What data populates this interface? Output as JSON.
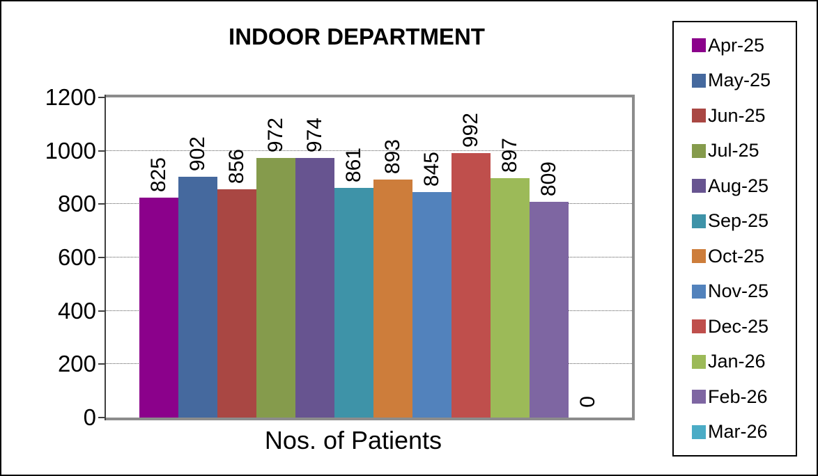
{
  "chart_data": {
    "type": "bar",
    "title": "INDOOR DEPARTMENT",
    "xlabel": "Nos. of Patients",
    "ylabel": "",
    "ylim": [
      0,
      1200
    ],
    "yticks": [
      0,
      200,
      400,
      600,
      800,
      1000,
      1200
    ],
    "grid": true,
    "legend_position": "right",
    "data_label_rotation": -90,
    "series": [
      {
        "name": "Apr-25",
        "value": 825,
        "color": "#8B018B"
      },
      {
        "name": "May-25",
        "value": 902,
        "color": "#45699E"
      },
      {
        "name": "Jun-25",
        "value": 856,
        "color": "#A94743"
      },
      {
        "name": "Jul-25",
        "value": 972,
        "color": "#859B4C"
      },
      {
        "name": "Aug-25",
        "value": 974,
        "color": "#675490"
      },
      {
        "name": "Sep-25",
        "value": 861,
        "color": "#3E93A8"
      },
      {
        "name": "Oct-25",
        "value": 893,
        "color": "#CD7D3B"
      },
      {
        "name": "Nov-25",
        "value": 845,
        "color": "#5282BC"
      },
      {
        "name": "Dec-25",
        "value": 992,
        "color": "#BF4F4C"
      },
      {
        "name": "Jan-26",
        "value": 897,
        "color": "#9CBA58"
      },
      {
        "name": "Feb-26",
        "value": 809,
        "color": "#7E66A2"
      },
      {
        "name": "Mar-26",
        "value": 0,
        "color": "#4BACC6"
      }
    ]
  }
}
